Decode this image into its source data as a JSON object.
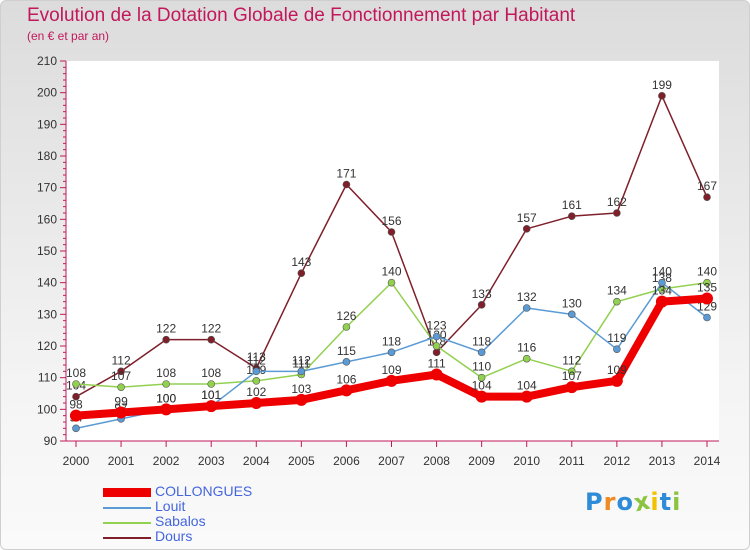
{
  "title": "Evolution de la Dotation Globale de Fonctionnement par Habitant",
  "subtitle": "(en € et par an)",
  "logo": {
    "text": "Proxiti",
    "letters": [
      "P",
      "r",
      "o",
      "x",
      "i",
      "t",
      "i"
    ],
    "colors": [
      "#2e8bd8",
      "#f08a24",
      "#2e8bd8",
      "#8bc53f",
      "#f2c200",
      "#2e8bd8",
      "#8bc53f"
    ]
  },
  "chart_data": {
    "type": "line",
    "title": "Evolution de la Dotation Globale de Fonctionnement par Habitant",
    "subtitle": "(en € et par an)",
    "xlabel": "",
    "ylabel": "",
    "x": [
      "2000",
      "2001",
      "2002",
      "2003",
      "2004",
      "2005",
      "2006",
      "2007",
      "2008",
      "2009",
      "2010",
      "2011",
      "2012",
      "2013",
      "2014"
    ],
    "ylim": [
      90,
      210
    ],
    "yticks": [
      90,
      100,
      110,
      120,
      130,
      140,
      150,
      160,
      170,
      180,
      190,
      200,
      210
    ],
    "grid": false,
    "legend_position": "bottom-left",
    "series": [
      {
        "name": "COLLONGUES",
        "color": "#ee0000",
        "values": [
          98,
          99,
          100,
          101,
          102,
          103,
          106,
          109,
          111,
          104,
          104,
          107,
          109,
          134,
          135
        ]
      },
      {
        "name": "Louit",
        "color": "#5b9bd5",
        "values": [
          94,
          97,
          100,
          101,
          112,
          112,
          115,
          118,
          123,
          118,
          132,
          130,
          119,
          140,
          129
        ]
      },
      {
        "name": "Sabalos",
        "color": "#92d050",
        "values": [
          108,
          107,
          108,
          108,
          109,
          111,
          126,
          140,
          120,
          110,
          116,
          112,
          134,
          138,
          140
        ]
      },
      {
        "name": "Dours",
        "color": "#7f1f2a",
        "values": [
          104,
          112,
          122,
          122,
          113,
          143,
          171,
          156,
          118,
          133,
          157,
          161,
          162,
          199,
          167
        ]
      }
    ]
  }
}
